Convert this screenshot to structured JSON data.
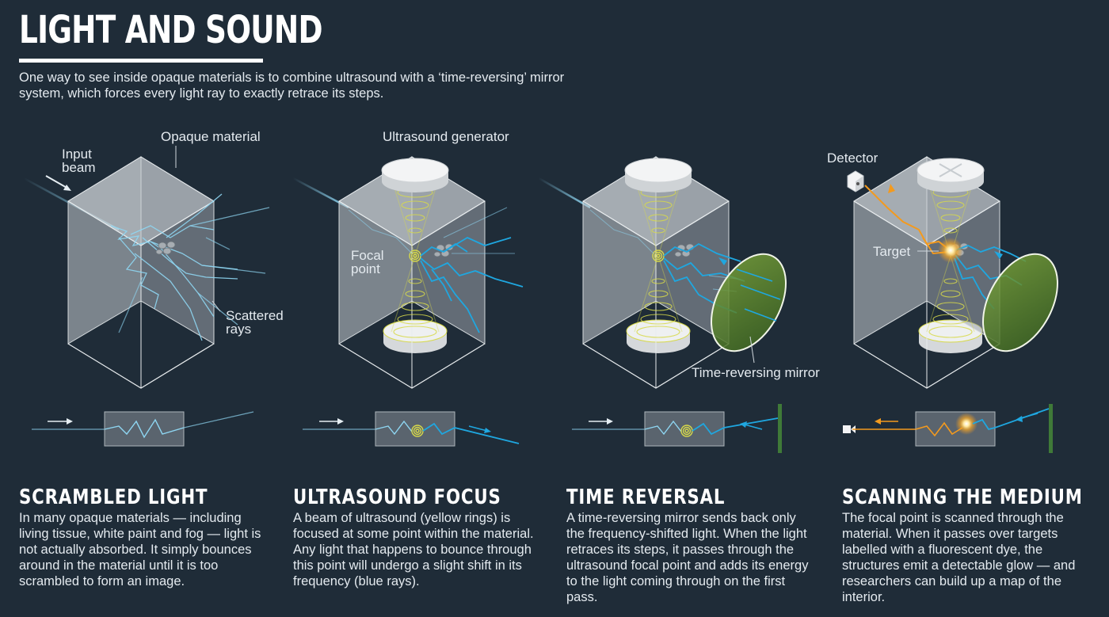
{
  "header": {
    "title": "LIGHT AND SOUND",
    "intro": "One way to see inside opaque materials is to combine ultrasound with a ‘time-reversing’ mirror system, which forces every light ray to exactly retrace its steps."
  },
  "labels": {
    "input_beam_1": "Input",
    "input_beam_2": "beam",
    "opaque_material": "Opaque material",
    "scattered_1": "Scattered",
    "scattered_2": "rays",
    "ultrasound_generator": "Ultrasound generator",
    "focal_1": "Focal",
    "focal_2": "point",
    "time_reversing_mirror": "Time-reversing mirror",
    "detector": "Detector",
    "target": "Target"
  },
  "sections": [
    {
      "title": "SCRAMBLED LIGHT",
      "body": "In many opaque materials — including living tissue, white paint and fog — light is not actually absorbed. It simply bounces around in the material until it is too scrambled to form an image."
    },
    {
      "title": "ULTRASOUND FOCUS",
      "body": "A beam of ultrasound (yellow rings) is focused at some point within the material. Any light that happens to bounce through this point will undergo a slight shift in its frequency (blue rays)."
    },
    {
      "title": "TIME REVERSAL",
      "body": "A time-reversing mirror sends back only the frequency-shifted light. When the light retraces its steps, it passes through the ultrasound focal point and adds its energy to the light coming through on the first pass."
    },
    {
      "title": "SCANNING THE MEDIUM",
      "body": "The focal point is scanned through the material. When it passes over targets labelled with a fluorescent dye, the structures emit a detectable glow — and researchers can build up a map of the interior."
    }
  ],
  "colors": {
    "background": "#1f2c38",
    "scattered_light": "#8ed6f2",
    "shifted_light": "#1fa7e0",
    "ultrasound": "#d7d94a",
    "mirror": "#5f8a2b",
    "detected_light": "#f39a1e"
  }
}
